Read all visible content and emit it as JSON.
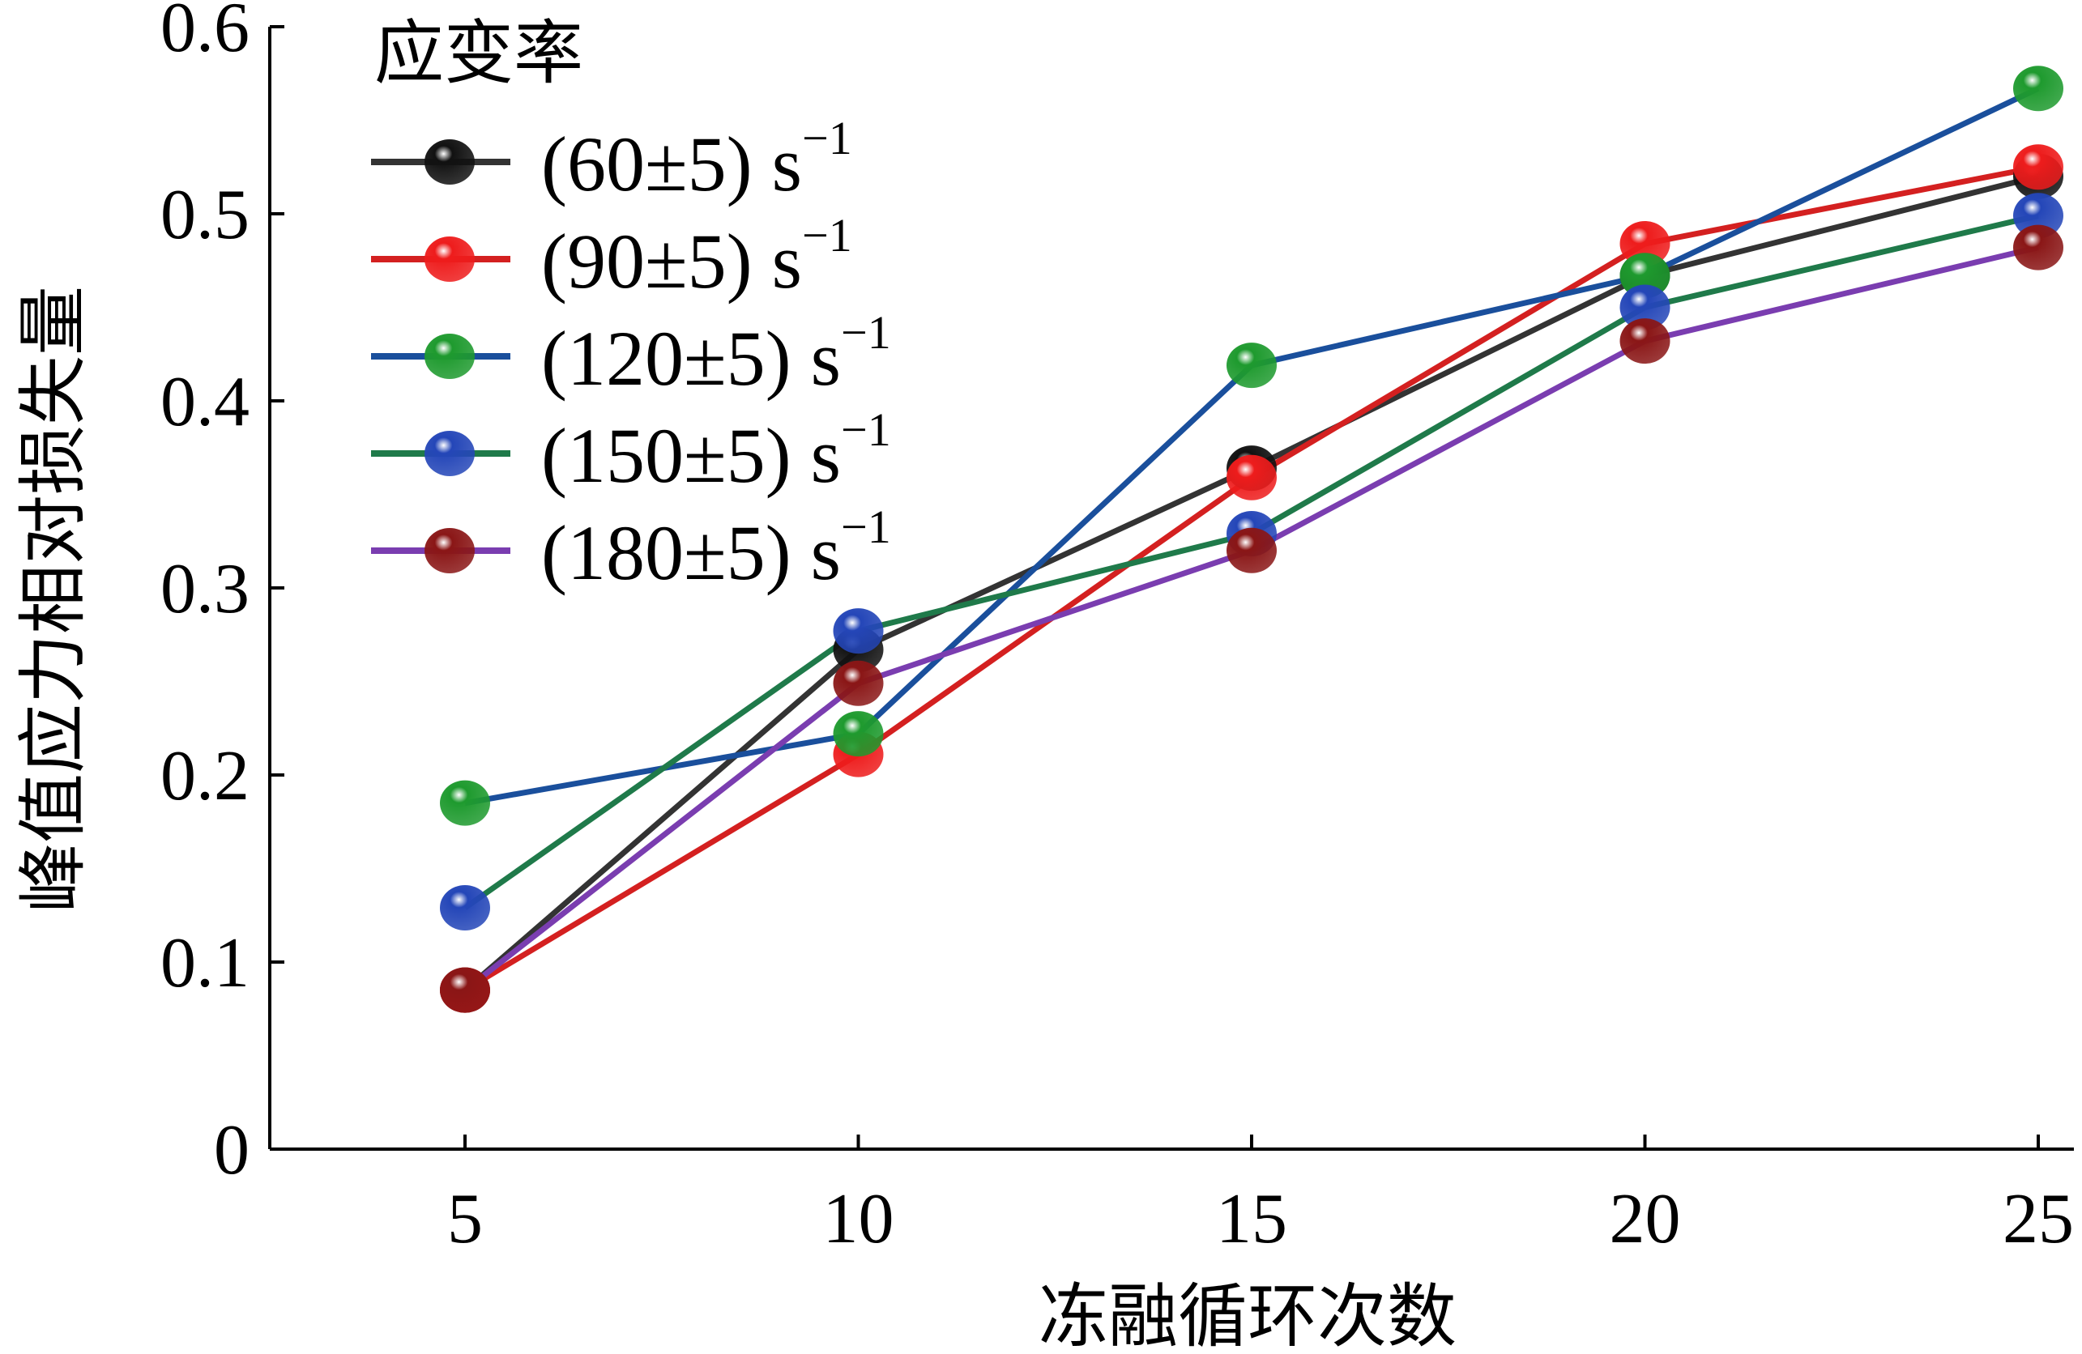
{
  "chart_data": {
    "type": "line",
    "xlabel": "冻融循环次数",
    "ylabel": "峰值应力相对损失量",
    "x": [
      5,
      10,
      15,
      20,
      25
    ],
    "xticks": [
      "5",
      "10",
      "15",
      "20",
      "25"
    ],
    "yticks": [
      "0",
      "0.1",
      "0.2",
      "0.3",
      "0.4",
      "0.5",
      "0.6"
    ],
    "xlim": [
      2.5,
      25.5
    ],
    "ylim": [
      0,
      0.6
    ],
    "grid": false,
    "legend_title": "应变率",
    "legend_placement": "top-left",
    "series": [
      {
        "name": "(60±5) s",
        "sup": "−1",
        "line_color": "#333333",
        "marker_color": "#111111",
        "values": [
          0.085,
          0.267,
          0.364,
          0.467,
          0.52
        ]
      },
      {
        "name": "(90±5) s",
        "sup": "−1",
        "line_color": "#d42020",
        "marker_color": "#ee1c1c",
        "values": [
          0.085,
          0.211,
          0.359,
          0.484,
          0.525
        ]
      },
      {
        "name": "(120±5) s",
        "sup": "−1",
        "line_color": "#1a4f9c",
        "marker_color": "#1e9a2e",
        "values": [
          0.185,
          0.222,
          0.419,
          0.467,
          0.567
        ]
      },
      {
        "name": "(150±5) s",
        "sup": "−1",
        "line_color": "#1f7a4a",
        "marker_color": "#2446b8",
        "values": [
          0.129,
          0.277,
          0.329,
          0.45,
          0.499
        ]
      },
      {
        "name": "(180±5) s",
        "sup": "−1",
        "line_color": "#7a3db0",
        "marker_color": "#8a1616",
        "values": [
          0.085,
          0.249,
          0.32,
          0.432,
          0.482
        ]
      }
    ]
  }
}
